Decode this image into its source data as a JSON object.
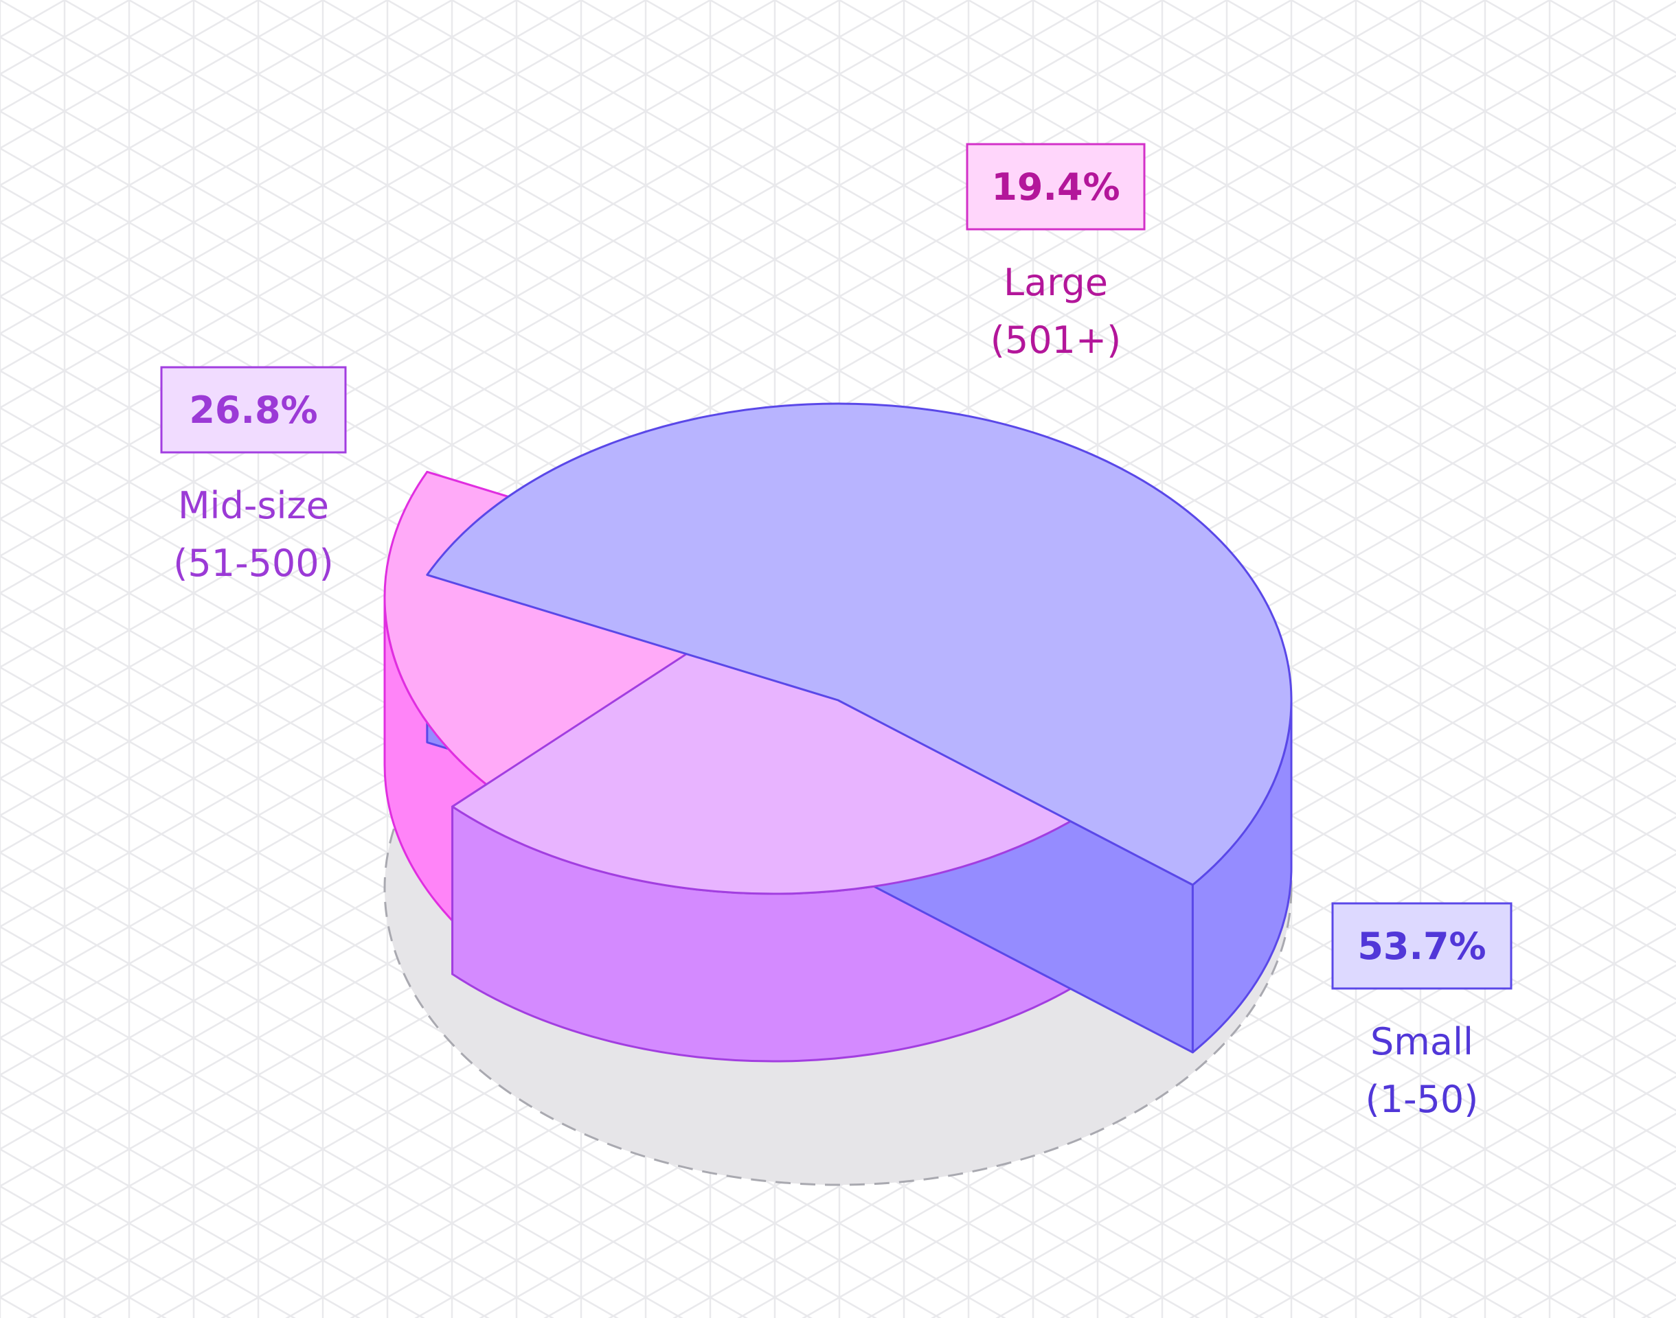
{
  "chart_data": {
    "type": "pie",
    "style": "3d-isometric",
    "grid": true,
    "slices": [
      {
        "label": [
          "Small",
          "(1-50)"
        ],
        "percent_label": "53.7%",
        "value": 53.7,
        "top_color": "#b8b4ff",
        "side_color": "#958cff",
        "stroke": "#5a48e8",
        "text_color": "#5137d8",
        "badge_fill": "#ddd9ff",
        "badge_stroke": "#5a48e8"
      },
      {
        "label": [
          "Mid-size",
          "(51-500)"
        ],
        "percent_label": "26.8%",
        "value": 26.8,
        "top_color": "#e8b4ff",
        "side_color": "#d48aff",
        "stroke": "#a23ee0",
        "text_color": "#9b3ad6",
        "badge_fill": "#f1dcff",
        "badge_stroke": "#a23ee0"
      },
      {
        "label": [
          "Large",
          "(501+)"
        ],
        "percent_label": "19.4%",
        "value": 19.4,
        "top_color": "#ffaaf8",
        "side_color": "#ff84f8",
        "stroke": "#e02ee0",
        "text_color": "#b3169a",
        "badge_fill": "#ffd6fb",
        "badge_stroke": "#d331c8"
      }
    ]
  }
}
